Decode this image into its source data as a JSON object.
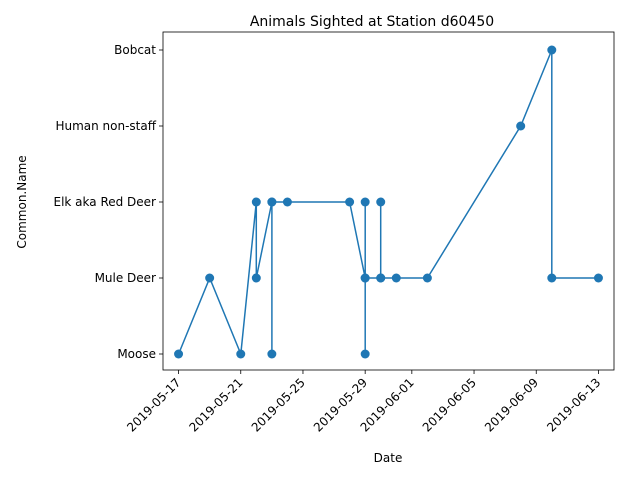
{
  "chart_data": {
    "type": "line",
    "title": "Animals Sighted at Station d60450",
    "xlabel": "Date",
    "ylabel": "Common.Name",
    "categories": [
      "Moose",
      "Mule Deer",
      "Elk aka Red Deer",
      "Human non-staff",
      "Bobcat"
    ],
    "x_ticks": [
      "2019-05-17",
      "2019-05-21",
      "2019-05-25",
      "2019-05-29",
      "2019-06-01",
      "2019-06-05",
      "2019-06-09",
      "2019-06-13"
    ],
    "xlim": [
      "2019-05-16",
      "2019-06-14"
    ],
    "grid": false,
    "color": "#1f77b4",
    "series": [
      {
        "points": [
          {
            "x": "2019-05-17",
            "y": "Moose"
          },
          {
            "x": "2019-05-19",
            "y": "Mule Deer"
          },
          {
            "x": "2019-05-21",
            "y": "Moose"
          },
          {
            "x": "2019-05-22",
            "y": "Elk aka Red Deer"
          },
          {
            "x": "2019-05-22",
            "y": "Mule Deer"
          },
          {
            "x": "2019-05-23",
            "y": "Elk aka Red Deer"
          },
          {
            "x": "2019-05-23",
            "y": "Moose"
          },
          {
            "x": "2019-05-23",
            "y": "Elk aka Red Deer"
          },
          {
            "x": "2019-05-24",
            "y": "Elk aka Red Deer"
          },
          {
            "x": "2019-05-28",
            "y": "Elk aka Red Deer"
          },
          {
            "x": "2019-05-29",
            "y": "Mule Deer"
          },
          {
            "x": "2019-05-29",
            "y": "Elk aka Red Deer"
          },
          {
            "x": "2019-05-29",
            "y": "Moose"
          },
          {
            "x": "2019-05-29",
            "y": "Mule Deer"
          },
          {
            "x": "2019-05-30",
            "y": "Mule Deer"
          },
          {
            "x": "2019-05-30",
            "y": "Elk aka Red Deer"
          },
          {
            "x": "2019-05-30",
            "y": "Mule Deer"
          },
          {
            "x": "2019-05-31",
            "y": "Mule Deer"
          },
          {
            "x": "2019-06-02",
            "y": "Mule Deer"
          },
          {
            "x": "2019-06-08",
            "y": "Human non-staff"
          },
          {
            "x": "2019-06-10",
            "y": "Bobcat"
          },
          {
            "x": "2019-06-10",
            "y": "Mule Deer"
          },
          {
            "x": "2019-06-13",
            "y": "Mule Deer"
          }
        ]
      }
    ]
  }
}
